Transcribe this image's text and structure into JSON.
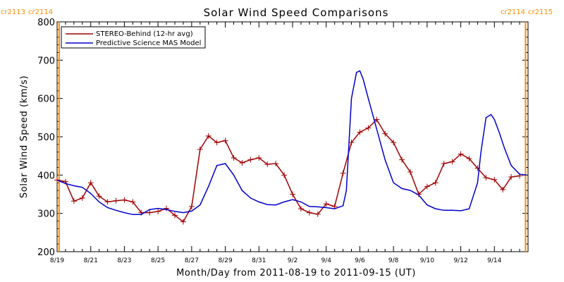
{
  "chart_data": {
    "type": "line",
    "title": "Solar Wind Speed Comparisons",
    "xlabel": "Month/Day from 2011-08-19 to 2011-09-15 (UT)",
    "ylabel": "Solar Wind Speed (km/s)",
    "ylim": [
      200,
      800
    ],
    "y_ticks": [
      200,
      300,
      400,
      500,
      600,
      700,
      800
    ],
    "xlim_days": [
      0,
      28
    ],
    "x_ticks": [
      {
        "day": 0,
        "label": "8/19"
      },
      {
        "day": 2,
        "label": "8/21"
      },
      {
        "day": 4,
        "label": "8/23"
      },
      {
        "day": 6,
        "label": "8/25"
      },
      {
        "day": 8,
        "label": "8/27"
      },
      {
        "day": 10,
        "label": "8/29"
      },
      {
        "day": 12,
        "label": "8/31"
      },
      {
        "day": 14,
        "label": "9/2"
      },
      {
        "day": 16,
        "label": "9/4"
      },
      {
        "day": 18,
        "label": "9/6"
      },
      {
        "day": 20,
        "label": "9/8"
      },
      {
        "day": 22,
        "label": "9/10"
      },
      {
        "day": 24,
        "label": "9/12"
      },
      {
        "day": 26,
        "label": "9/14"
      }
    ],
    "carrington_markers": [
      {
        "day": 0.12,
        "left_label": "cr2113",
        "right_label": "cr2114"
      },
      {
        "day": 27.85,
        "left_label": "cr2114",
        "right_label": "cr2115"
      }
    ],
    "legend_position": "top-left",
    "series": [
      {
        "name": "STEREO-Behind (12-hr avg)",
        "color": "#a00000",
        "marker": "plus",
        "x": [
          0.0,
          0.5,
          1.0,
          1.5,
          2.0,
          2.5,
          3.0,
          3.5,
          4.0,
          4.5,
          5.0,
          5.5,
          6.0,
          6.5,
          7.0,
          7.5,
          8.0,
          8.5,
          9.0,
          9.5,
          10.0,
          10.5,
          11.0,
          11.5,
          12.0,
          12.5,
          13.0,
          13.5,
          14.0,
          14.5,
          15.0,
          15.5,
          16.0,
          16.5,
          17.0,
          17.5,
          18.0,
          18.5,
          19.0,
          19.5,
          20.0,
          20.5,
          21.0,
          21.5,
          22.0,
          22.5,
          23.0,
          23.5,
          24.0,
          24.5,
          25.0,
          25.5,
          26.0,
          26.5,
          27.0,
          27.5
        ],
        "values": [
          387,
          383,
          332,
          340,
          380,
          345,
          330,
          333,
          335,
          330,
          302,
          302,
          305,
          313,
          295,
          278,
          318,
          467,
          502,
          485,
          490,
          445,
          432,
          440,
          445,
          428,
          430,
          400,
          350,
          312,
          302,
          298,
          325,
          318,
          405,
          485,
          512,
          523,
          545,
          508,
          485,
          440,
          408,
          350,
          370,
          380,
          430,
          435,
          455,
          443,
          418,
          393,
          388,
          362,
          395,
          398
        ]
      },
      {
        "name": "Predictive Science MAS Model",
        "color": "#0000cc",
        "marker": "none",
        "x": [
          0.0,
          0.5,
          1.0,
          1.5,
          2.0,
          2.5,
          3.0,
          3.5,
          4.0,
          4.5,
          5.0,
          5.5,
          6.0,
          6.5,
          7.0,
          7.5,
          8.0,
          8.5,
          9.0,
          9.5,
          10.0,
          10.5,
          11.0,
          11.5,
          12.0,
          12.5,
          13.0,
          13.5,
          14.0,
          14.5,
          15.0,
          15.5,
          16.0,
          16.5,
          17.0,
          17.2,
          17.5,
          17.8,
          18.0,
          18.2,
          18.5,
          19.0,
          19.5,
          20.0,
          20.5,
          21.0,
          21.5,
          22.0,
          22.5,
          23.0,
          23.5,
          24.0,
          24.5,
          25.0,
          25.2,
          25.5,
          25.8,
          26.0,
          26.3,
          26.6,
          27.0,
          27.5,
          27.9
        ],
        "values": [
          387,
          378,
          372,
          368,
          352,
          330,
          315,
          308,
          302,
          297,
          297,
          310,
          313,
          310,
          305,
          302,
          306,
          322,
          370,
          425,
          430,
          400,
          360,
          340,
          330,
          323,
          322,
          330,
          336,
          330,
          318,
          317,
          315,
          312,
          320,
          360,
          600,
          668,
          672,
          650,
          600,
          520,
          440,
          380,
          365,
          360,
          348,
          322,
          312,
          308,
          308,
          307,
          312,
          380,
          460,
          550,
          558,
          545,
          510,
          470,
          425,
          402,
          400
        ]
      }
    ]
  }
}
